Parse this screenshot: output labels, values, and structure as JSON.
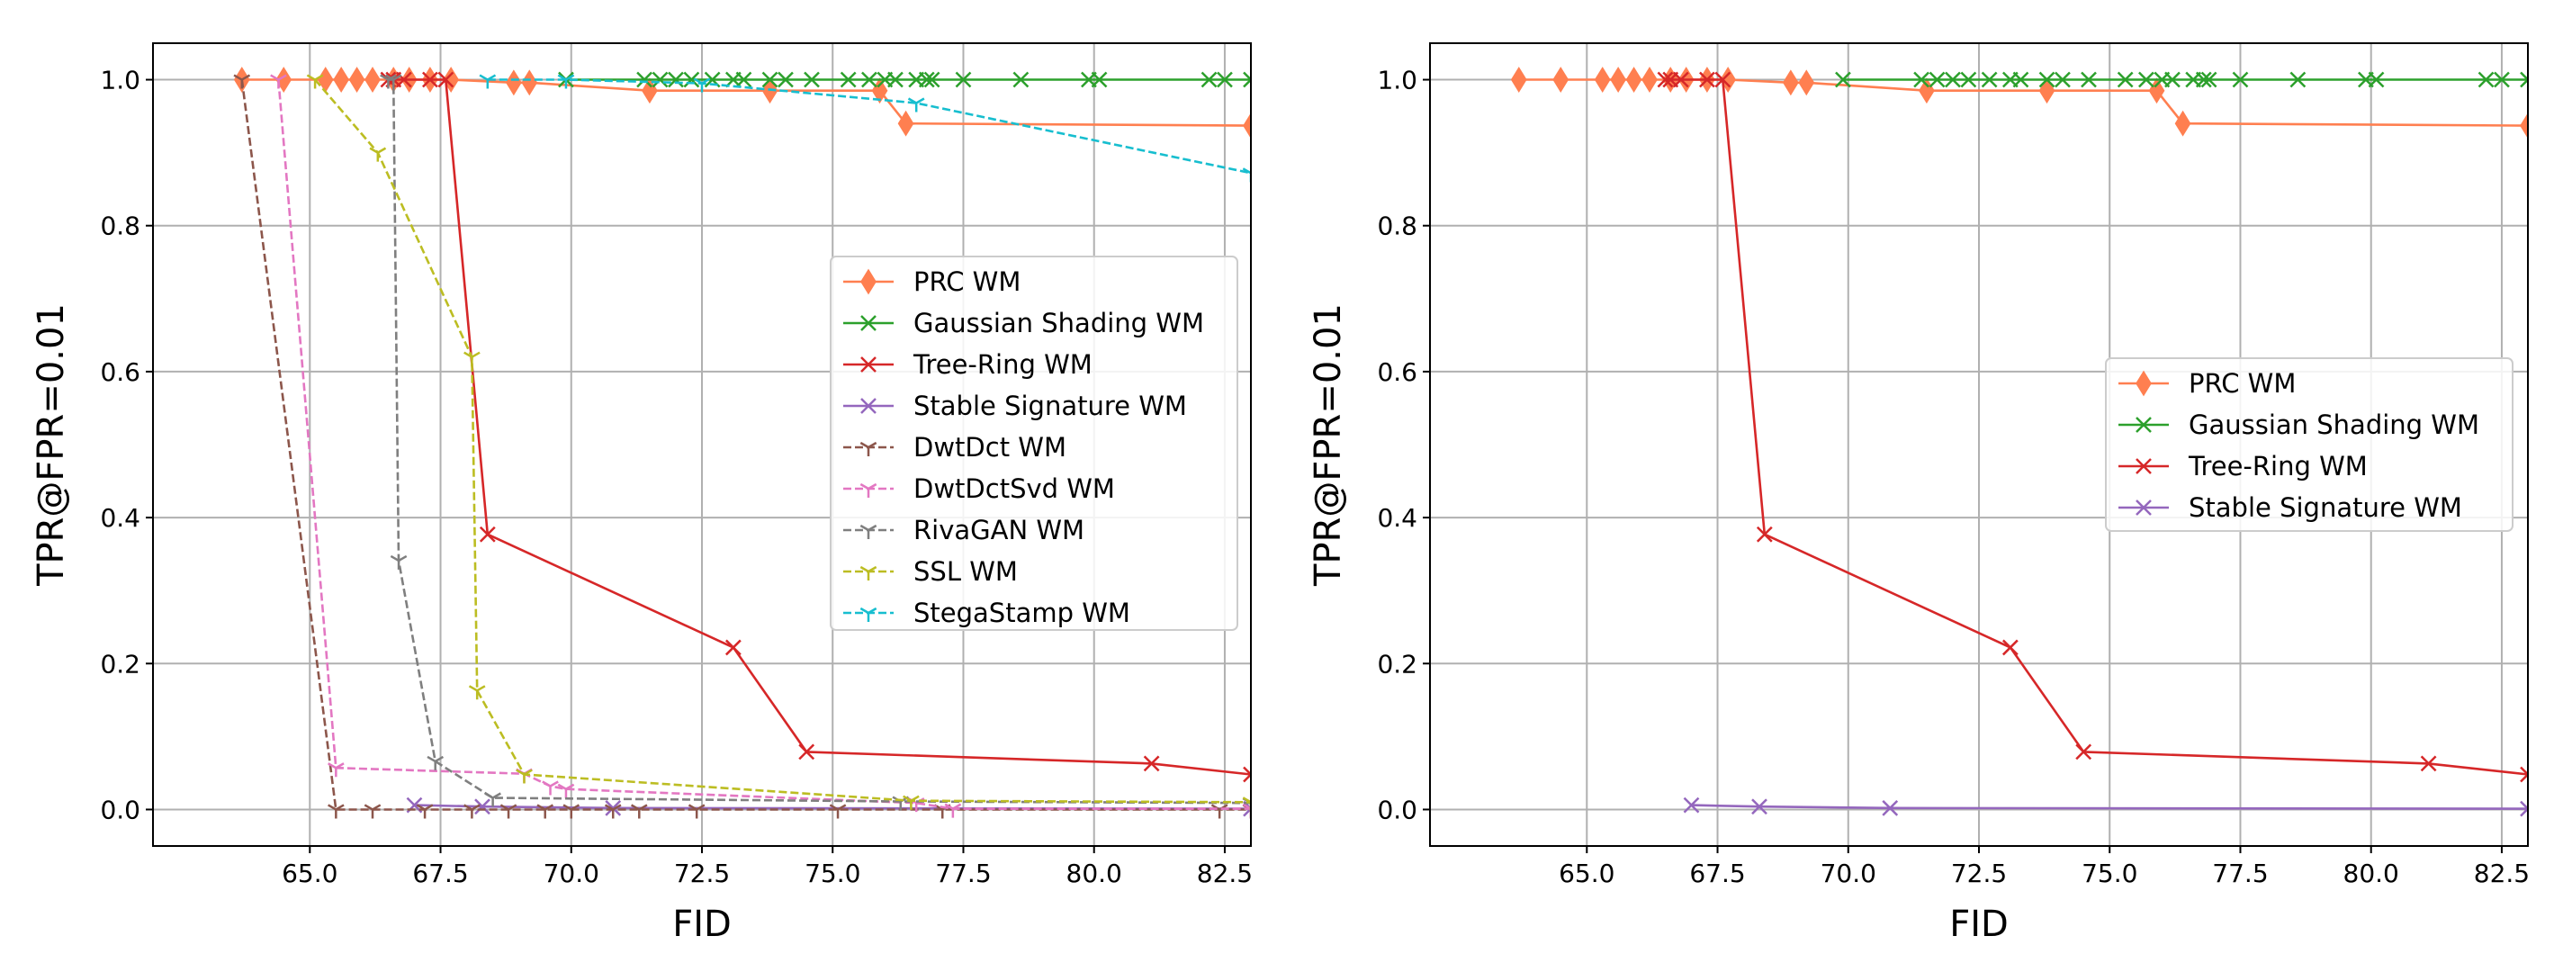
{
  "colors": {
    "prc": "#ff7f50",
    "gaussian": "#2ca02c",
    "treering": "#d62728",
    "stablesig": "#9467bd",
    "dwtdct": "#8c564b",
    "dwtdctsvd": "#e377c2",
    "rivagan": "#7f7f7f",
    "ssl": "#bcbd22",
    "stegastamp": "#17becf"
  },
  "chart_data": [
    {
      "type": "line",
      "panel": "left",
      "xlabel": "FID",
      "ylabel": "TPR@FPR=0.01",
      "xlim": [
        62.0,
        83.0
      ],
      "ylim": [
        -0.05,
        1.05
      ],
      "xticks": [
        65.0,
        67.5,
        70.0,
        72.5,
        75.0,
        77.5,
        80.0,
        82.5
      ],
      "xtick_labels": [
        "65.0",
        "67.5",
        "70.0",
        "72.5",
        "75.0",
        "77.5",
        "80.0",
        "82.5"
      ],
      "yticks": [
        0.0,
        0.2,
        0.4,
        0.6,
        0.8,
        1.0
      ],
      "ytick_labels": [
        "0.0",
        "0.2",
        "0.4",
        "0.6",
        "0.8",
        "1.0"
      ],
      "grid": true,
      "legend_position": "center-right",
      "series": [
        {
          "key": "prc",
          "name": "PRC WM",
          "marker": "thin_diamond",
          "dash": "solid",
          "x": [
            63.7,
            64.5,
            65.3,
            65.6,
            65.9,
            66.2,
            66.6,
            66.9,
            67.3,
            67.7,
            68.9,
            69.2,
            71.5,
            73.8,
            75.9,
            76.4,
            83.0
          ],
          "y": [
            1.0,
            1.0,
            1.0,
            1.0,
            1.0,
            1.0,
            1.0,
            1.0,
            1.0,
            1.0,
            0.996,
            0.996,
            0.985,
            0.985,
            0.985,
            0.94,
            0.937
          ]
        },
        {
          "key": "gaussian",
          "name": "Gaussian Shading WM",
          "marker": "x",
          "dash": "solid",
          "x": [
            69.9,
            71.4,
            71.7,
            72.0,
            72.3,
            72.7,
            73.1,
            73.3,
            73.8,
            74.1,
            74.6,
            75.3,
            75.7,
            76.0,
            76.2,
            76.6,
            76.8,
            76.9,
            77.5,
            78.6,
            79.9,
            80.1,
            82.2,
            82.5,
            83.0
          ],
          "y": [
            1.0,
            1.0,
            1.0,
            1.0,
            1.0,
            1.0,
            1.0,
            1.0,
            1.0,
            1.0,
            1.0,
            1.0,
            1.0,
            1.0,
            1.0,
            1.0,
            1.0,
            1.0,
            1.0,
            1.0,
            1.0,
            1.0,
            1.0,
            1.0,
            1.0
          ]
        },
        {
          "key": "treering",
          "name": "Tree-Ring WM",
          "marker": "x",
          "dash": "solid",
          "x": [
            66.5,
            66.6,
            66.8,
            67.3,
            67.6,
            68.4,
            73.1,
            74.5,
            81.1,
            83.0
          ],
          "y": [
            1.0,
            1.0,
            1.0,
            1.0,
            1.0,
            0.377,
            0.222,
            0.079,
            0.063,
            0.048
          ]
        },
        {
          "key": "stablesig",
          "name": "Stable Signature WM",
          "marker": "x",
          "dash": "solid",
          "x": [
            67.0,
            68.3,
            70.8,
            83.0
          ],
          "y": [
            0.006,
            0.004,
            0.002,
            0.001
          ]
        },
        {
          "key": "dwtdct",
          "name": "DwtDct WM",
          "marker": "tri_down",
          "dash": "dashed",
          "x": [
            63.7,
            65.5,
            66.2,
            67.2,
            68.1,
            68.8,
            69.5,
            70.0,
            70.8,
            71.3,
            72.4,
            75.1,
            77.1,
            82.4,
            83.0
          ],
          "y": [
            1.0,
            0.0,
            0.0,
            0.0,
            0.0,
            0.0,
            0.0,
            0.0,
            0.0,
            0.0,
            0.0,
            0.0,
            0.0,
            0.0,
            0.0
          ]
        },
        {
          "key": "dwtdctsvd",
          "name": "DwtDctSvd WM",
          "marker": "tri_down",
          "dash": "dashed",
          "x": [
            64.4,
            65.5,
            69.1,
            69.6,
            69.9,
            76.6,
            77.3,
            83.0
          ],
          "y": [
            1.0,
            0.057,
            0.049,
            0.032,
            0.028,
            0.009,
            0.001,
            0.001
          ]
        },
        {
          "key": "rivagan",
          "name": "RivaGAN WM",
          "marker": "tri_down",
          "dash": "dashed",
          "x": [
            66.5,
            66.6,
            66.7,
            67.4,
            68.5,
            76.3,
            83.0
          ],
          "y": [
            1.0,
            1.0,
            0.341,
            0.066,
            0.016,
            0.011,
            0.009
          ]
        },
        {
          "key": "ssl",
          "name": "SSL WM",
          "marker": "tri_down",
          "dash": "dashed",
          "x": [
            65.1,
            66.3,
            68.1,
            68.2,
            69.1,
            76.5,
            83.0
          ],
          "y": [
            1.0,
            0.9,
            0.62,
            0.163,
            0.048,
            0.012,
            0.01
          ]
        },
        {
          "key": "stegastamp",
          "name": "StegaStamp WM",
          "marker": "tri_down",
          "dash": "dashed",
          "x": [
            68.4,
            69.9,
            72.5,
            76.6,
            83.0
          ],
          "y": [
            1.0,
            1.0,
            0.995,
            0.968,
            0.872
          ]
        }
      ]
    },
    {
      "type": "line",
      "panel": "right",
      "xlabel": "FID",
      "ylabel": "TPR@FPR=0.01",
      "xlim": [
        62.0,
        83.0
      ],
      "ylim": [
        -0.05,
        1.05
      ],
      "xticks": [
        65.0,
        67.5,
        70.0,
        72.5,
        75.0,
        77.5,
        80.0,
        82.5
      ],
      "xtick_labels": [
        "65.0",
        "67.5",
        "70.0",
        "72.5",
        "75.0",
        "77.5",
        "80.0",
        "82.5"
      ],
      "yticks": [
        0.0,
        0.2,
        0.4,
        0.6,
        0.8,
        1.0
      ],
      "ytick_labels": [
        "0.0",
        "0.2",
        "0.4",
        "0.6",
        "0.8",
        "1.0"
      ],
      "grid": true,
      "legend_position": "center-right",
      "series": [
        {
          "key": "prc",
          "name": "PRC WM",
          "marker": "thin_diamond",
          "dash": "solid",
          "x": [
            63.7,
            64.5,
            65.3,
            65.6,
            65.9,
            66.2,
            66.6,
            66.9,
            67.3,
            67.7,
            68.9,
            69.2,
            71.5,
            73.8,
            75.9,
            76.4,
            83.0
          ],
          "y": [
            1.0,
            1.0,
            1.0,
            1.0,
            1.0,
            1.0,
            1.0,
            1.0,
            1.0,
            1.0,
            0.996,
            0.996,
            0.985,
            0.985,
            0.985,
            0.94,
            0.937
          ]
        },
        {
          "key": "gaussian",
          "name": "Gaussian Shading WM",
          "marker": "x",
          "dash": "solid",
          "x": [
            69.9,
            71.4,
            71.7,
            72.0,
            72.3,
            72.7,
            73.1,
            73.3,
            73.8,
            74.1,
            74.6,
            75.3,
            75.7,
            76.0,
            76.2,
            76.6,
            76.8,
            76.9,
            77.5,
            78.6,
            79.9,
            80.1,
            82.2,
            82.5,
            83.0
          ],
          "y": [
            1.0,
            1.0,
            1.0,
            1.0,
            1.0,
            1.0,
            1.0,
            1.0,
            1.0,
            1.0,
            1.0,
            1.0,
            1.0,
            1.0,
            1.0,
            1.0,
            1.0,
            1.0,
            1.0,
            1.0,
            1.0,
            1.0,
            1.0,
            1.0,
            1.0
          ]
        },
        {
          "key": "treering",
          "name": "Tree-Ring WM",
          "marker": "x",
          "dash": "solid",
          "x": [
            66.5,
            66.6,
            66.8,
            67.3,
            67.6,
            68.4,
            73.1,
            74.5,
            81.1,
            83.0
          ],
          "y": [
            1.0,
            1.0,
            1.0,
            1.0,
            1.0,
            0.377,
            0.222,
            0.079,
            0.063,
            0.048
          ]
        },
        {
          "key": "stablesig",
          "name": "Stable Signature WM",
          "marker": "x",
          "dash": "solid",
          "x": [
            67.0,
            68.3,
            70.8,
            83.0
          ],
          "y": [
            0.006,
            0.004,
            0.002,
            0.001
          ]
        }
      ]
    }
  ]
}
